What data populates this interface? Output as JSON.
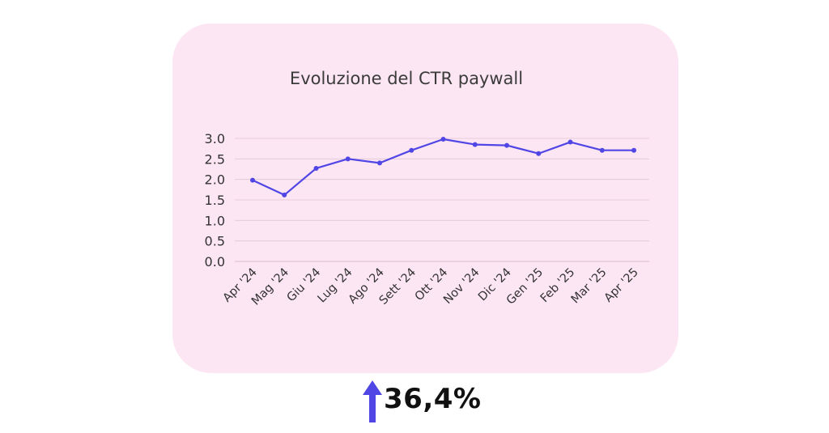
{
  "colors": {
    "card_background": "#fde6f3",
    "series_line": "#5046e5",
    "gridline": "#ddc7d2",
    "arrow": "#5046e5"
  },
  "summary": {
    "arrow_icon": "arrow-up-icon",
    "change_value": "36,4%"
  },
  "chart_data": {
    "type": "line",
    "title": "Evoluzione del CTR paywall",
    "xlabel": "",
    "ylabel": "",
    "categories": [
      "Apr '24",
      "Mag '24",
      "Giu '24",
      "Lug '24",
      "Ago '24",
      "Sett '24",
      "Ott '24",
      "Nov '24",
      "Dic '24",
      "Gen '25",
      "Feb '25",
      "Mar '25",
      "Apr '25"
    ],
    "series": [
      {
        "values": [
          1.98,
          1.62,
          2.27,
          2.5,
          2.4,
          2.71,
          2.98,
          2.85,
          2.83,
          2.63,
          2.91,
          2.71,
          2.71
        ]
      }
    ],
    "ylim": [
      0,
      3
    ],
    "yticks": [
      "0.0",
      "0.5",
      "1.0",
      "1.5",
      "2.0",
      "2.5",
      "3.0"
    ],
    "grid": true,
    "legend": "none"
  }
}
